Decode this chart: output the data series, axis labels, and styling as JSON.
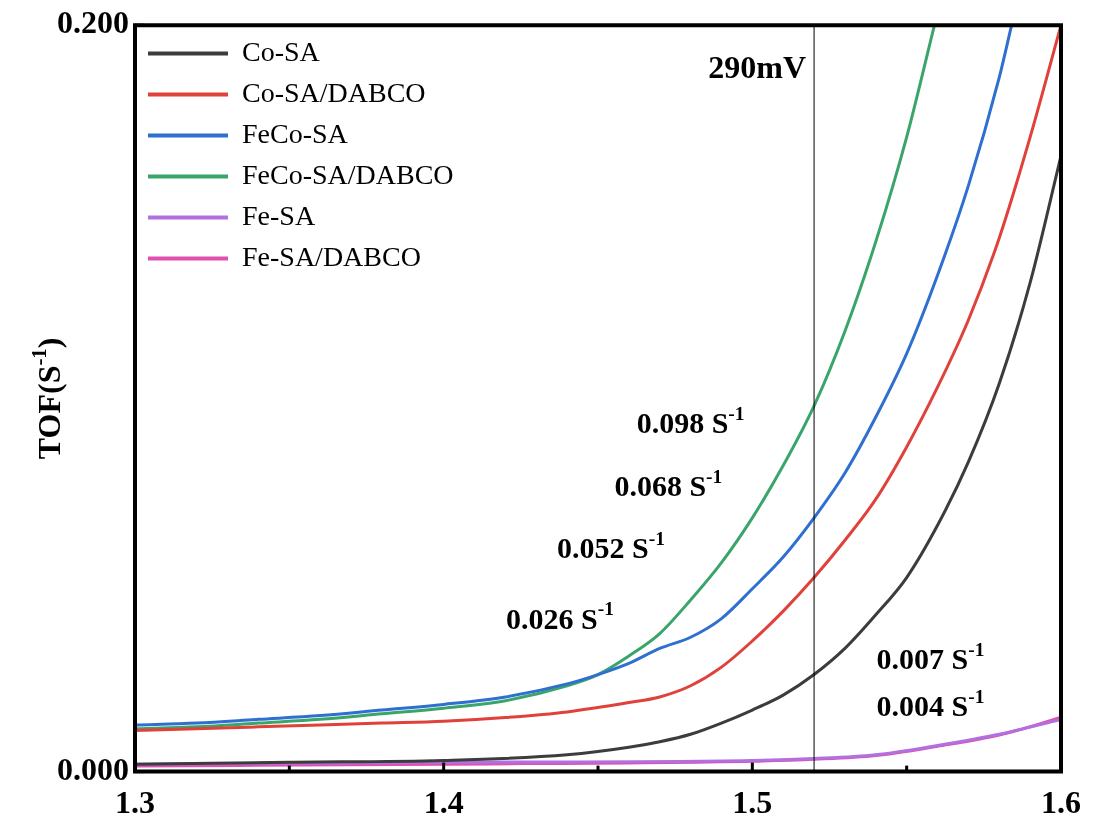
{
  "chart_data": {
    "type": "line",
    "ylabel": "TOF(S$^{-1}$)",
    "xlim": [
      1.3,
      1.6
    ],
    "xticks": [
      1.3,
      {
        "value": 1.35,
        "label": null
      },
      1.4,
      {
        "value": 1.45,
        "label": null
      },
      1.5,
      {
        "value": 1.55,
        "label": null
      },
      1.6
    ],
    "ylim": [
      0,
      0.2
    ],
    "yticks": [
      {
        "value": 0,
        "label": "0.000"
      },
      {
        "value": 0.2,
        "label": "0.200"
      }
    ],
    "grid": false,
    "legend": "top left",
    "marker": "none",
    "line_style": "solid",
    "series": [
      {
        "name": "Co-SA",
        "color": "#3c3c3c",
        "x": [
          1.3,
          1.35,
          1.4,
          1.44,
          1.46,
          1.47,
          1.48,
          1.49,
          1.5,
          1.51,
          1.52,
          1.53,
          1.54,
          1.55,
          1.56,
          1.57,
          1.58,
          1.59,
          1.6
        ],
        "values": [
          0.002,
          0.0025,
          0.003,
          0.0045,
          0.0065,
          0.008,
          0.01,
          0.013,
          0.0165,
          0.0205,
          0.026,
          0.033,
          0.042,
          0.052,
          0.066,
          0.083,
          0.104,
          0.131,
          0.165
        ]
      },
      {
        "name": "Co-SA/DABCO",
        "color": "#e0413a",
        "x": [
          1.3,
          1.32,
          1.34,
          1.36,
          1.38,
          1.4,
          1.42,
          1.44,
          1.46,
          1.47,
          1.48,
          1.49,
          1.5,
          1.51,
          1.52,
          1.53,
          1.54,
          1.55,
          1.56,
          1.57,
          1.58,
          1.59,
          1.6
        ],
        "values": [
          0.011,
          0.0115,
          0.012,
          0.0125,
          0.013,
          0.0135,
          0.0145,
          0.016,
          0.0185,
          0.02,
          0.023,
          0.028,
          0.035,
          0.043,
          0.052,
          0.062,
          0.073,
          0.087,
          0.103,
          0.121,
          0.143,
          0.17,
          0.2
        ]
      },
      {
        "name": "FeCo-SA",
        "color": "#2f6fd0",
        "x": [
          1.3,
          1.32,
          1.34,
          1.36,
          1.38,
          1.4,
          1.42,
          1.44,
          1.45,
          1.46,
          1.47,
          1.48,
          1.49,
          1.5,
          1.51,
          1.52,
          1.53,
          1.54,
          1.55,
          1.56,
          1.57,
          1.58,
          1.584
        ],
        "values": [
          0.0125,
          0.013,
          0.014,
          0.015,
          0.0165,
          0.018,
          0.02,
          0.0235,
          0.026,
          0.029,
          0.033,
          0.036,
          0.041,
          0.049,
          0.0575,
          0.068,
          0.08,
          0.095,
          0.112,
          0.133,
          0.157,
          0.186,
          0.2
        ]
      },
      {
        "name": "FeCo-SA/DABCO",
        "color": "#3aa56a",
        "x": [
          1.3,
          1.32,
          1.34,
          1.36,
          1.38,
          1.4,
          1.42,
          1.44,
          1.45,
          1.46,
          1.47,
          1.48,
          1.49,
          1.5,
          1.51,
          1.52,
          1.53,
          1.54,
          1.55,
          1.559
        ],
        "values": [
          0.0115,
          0.012,
          0.013,
          0.014,
          0.0155,
          0.017,
          0.019,
          0.023,
          0.026,
          0.031,
          0.037,
          0.046,
          0.056,
          0.068,
          0.082,
          0.098,
          0.118,
          0.142,
          0.17,
          0.2
        ]
      },
      {
        "name": "Fe-SA",
        "color": "#b070e0",
        "x": [
          1.3,
          1.4,
          1.5,
          1.52,
          1.54,
          1.56,
          1.58,
          1.6
        ],
        "values": [
          0.002,
          0.0025,
          0.003,
          0.0035,
          0.0045,
          0.007,
          0.01,
          0.014
        ]
      },
      {
        "name": "Fe-SA/DABCO",
        "color": "#e050b0",
        "x": [
          1.3,
          1.4,
          1.5,
          1.52,
          1.54,
          1.56,
          1.58,
          1.6
        ],
        "values": [
          0.0015,
          0.002,
          0.0028,
          0.0033,
          0.0043,
          0.0068,
          0.0098,
          0.0145
        ]
      }
    ],
    "ref_lines": [
      {
        "axis": "x",
        "value": 1.52,
        "label": "290mV",
        "color": "#000000"
      }
    ],
    "annotations": [
      "0.098 S$^{-1}$",
      "0.068 S$^{-1}$",
      "0.052 S$^{-1}$",
      "0.026 S$^{-1}$",
      "0.007 S$^{-1}$",
      "0.004 S$^{-1}$"
    ]
  }
}
